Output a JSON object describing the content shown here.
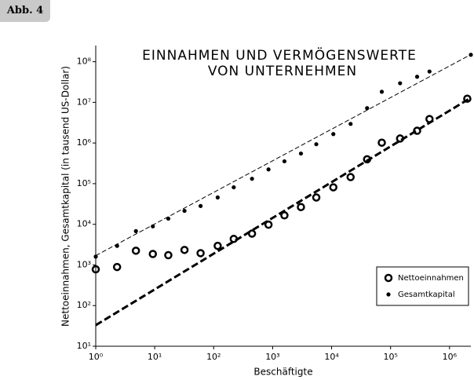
{
  "figure_label": "Abb. 4",
  "chart_data": {
    "type": "scatter",
    "title": [
      "EINNAHMEN UND VERMÖGENSWERTE",
      "VON UNTERNEHMEN"
    ],
    "x_label": "Beschäftigte",
    "y_label": "Nettoeinnahmen, Gesamtkapital (in tausend US-Dollar)",
    "log_x": true,
    "log_y": true,
    "xlim": [
      1,
      2300000
    ],
    "ylim": [
      10,
      250000000
    ],
    "xticks": [
      {
        "value": 1,
        "label": "10⁰"
      },
      {
        "value": 10,
        "label": "10¹"
      },
      {
        "value": 100,
        "label": "10²"
      },
      {
        "value": 1000,
        "label": "10³"
      },
      {
        "value": 10000,
        "label": "10⁴"
      },
      {
        "value": 100000,
        "label": "10⁵"
      },
      {
        "value": 1000000,
        "label": "10⁶"
      }
    ],
    "yticks": [
      {
        "value": 10,
        "label": "10¹"
      },
      {
        "value": 100,
        "label": "10²"
      },
      {
        "value": 1000,
        "label": "10³"
      },
      {
        "value": 10000,
        "label": "10⁴"
      },
      {
        "value": 100000,
        "label": "10⁵"
      },
      {
        "value": 1000000,
        "label": "10⁶"
      },
      {
        "value": 10000000,
        "label": "10⁷"
      },
      {
        "value": 100000000,
        "label": "10⁸"
      }
    ],
    "legend": "lower-right",
    "series": [
      {
        "name": "Nettoeinnahmen",
        "marker": "open-circle",
        "color": "#000000",
        "x": [
          1,
          2.3,
          4.8,
          9.3,
          17,
          32,
          60,
          117,
          219,
          447,
          851,
          1585,
          3020,
          5500,
          10700,
          21000,
          40000,
          71000,
          145000,
          282000,
          457000,
          2000000
        ],
        "values": [
          780,
          890,
          2240,
          1860,
          1740,
          2340,
          1950,
          2950,
          4370,
          5900,
          9800,
          16600,
          26600,
          45700,
          81300,
          145000,
          398000,
          1020000,
          1290000,
          2000000,
          3890000,
          12300000
        ]
      },
      {
        "name": "Gesamtkapital",
        "marker": "dot",
        "color": "#000000",
        "x": [
          1,
          2.3,
          4.8,
          9.3,
          17,
          32,
          60,
          117,
          219,
          447,
          851,
          1585,
          3020,
          5500,
          10700,
          21000,
          40000,
          71000,
          145000,
          282000,
          457000,
          2300000
        ],
        "values": [
          1600,
          2950,
          6800,
          8900,
          13800,
          21400,
          28200,
          45700,
          81300,
          132000,
          224000,
          355000,
          550000,
          933000,
          1660000,
          2950000,
          7200000,
          18200000,
          29500000,
          42700000,
          57500000,
          148000000
        ]
      }
    ],
    "trend_lines": [
      {
        "x": [
          1,
          2300000
        ],
        "values": [
          1700,
          150000000
        ],
        "width": 1,
        "color": "#000000"
      },
      {
        "x": [
          1,
          2300000
        ],
        "values": [
          33,
          13000000
        ],
        "width": 3,
        "color": "#000000"
      }
    ]
  }
}
